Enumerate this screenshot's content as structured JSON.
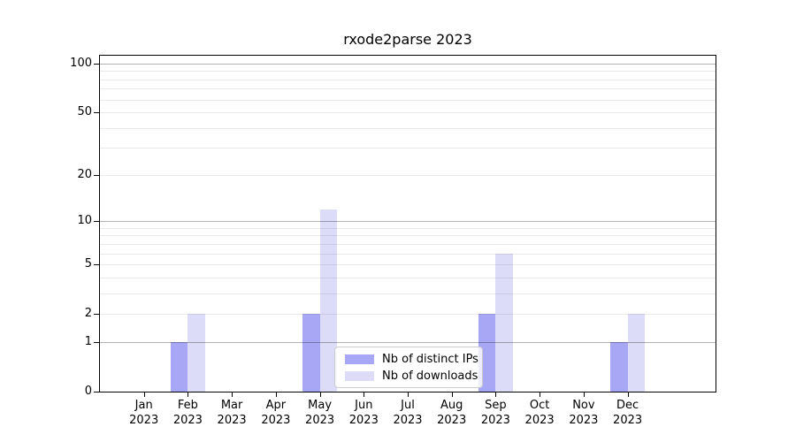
{
  "figure": {
    "background": "#ffffff",
    "text_color": "#000000"
  },
  "chart_data": {
    "type": "bar",
    "title": "rxode2parse 2023",
    "x": {
      "months": [
        "Jan",
        "Feb",
        "Mar",
        "Apr",
        "May",
        "Jun",
        "Jul",
        "Aug",
        "Sep",
        "Oct",
        "Nov",
        "Dec"
      ],
      "year": "2023"
    },
    "series": [
      {
        "name": "Nb of distinct IPs",
        "color": "#a7a7f5",
        "values": [
          0,
          1,
          0,
          0,
          2,
          0,
          0,
          0,
          2,
          0,
          0,
          1
        ]
      },
      {
        "name": "Nb of downloads",
        "color": "#dcdcf9",
        "values": [
          0,
          2,
          0,
          0,
          12,
          0,
          0,
          0,
          6,
          0,
          0,
          2
        ]
      }
    ],
    "y_axis": {
      "scale": "log1p",
      "ticks": [
        0,
        1,
        2,
        5,
        10,
        20,
        50,
        100
      ],
      "major_grid": [
        1,
        10,
        100
      ],
      "minor_grid": [
        2,
        3,
        4,
        5,
        6,
        7,
        8,
        9,
        20,
        30,
        40,
        50,
        60,
        70,
        80,
        90
      ],
      "max": 112
    },
    "legend": {
      "position": "lower center",
      "labels": [
        "Nb of distinct IPs",
        "Nb of downloads"
      ]
    },
    "grid": true,
    "xlabel": "",
    "ylabel": ""
  }
}
